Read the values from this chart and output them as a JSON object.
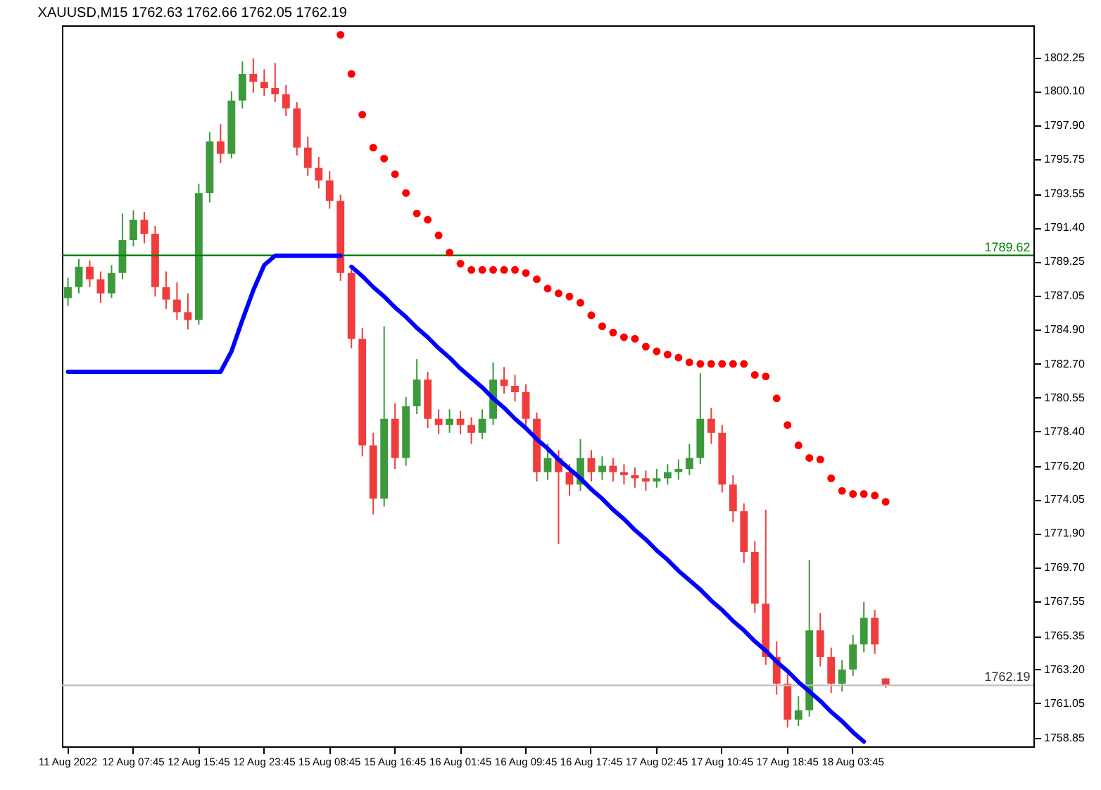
{
  "chart_data": {
    "type": "candlestick",
    "title": "XAUUSD,M15 1762.63 1762.66 1762.05 1762.19",
    "categories": [
      "11 Aug 2022",
      null,
      null,
      null,
      null,
      null,
      "12 Aug 07:45",
      null,
      null,
      null,
      null,
      null,
      "12 Aug 15:45",
      null,
      null,
      null,
      null,
      null,
      "12 Aug 23:45",
      null,
      null,
      null,
      null,
      null,
      "15 Aug 08:45",
      null,
      null,
      null,
      null,
      null,
      "15 Aug 16:45",
      null,
      null,
      null,
      null,
      null,
      "16 Aug 01:45",
      null,
      null,
      null,
      null,
      null,
      "16 Aug 09:45",
      null,
      null,
      null,
      null,
      null,
      "16 Aug 17:45",
      null,
      null,
      null,
      null,
      null,
      "17 Aug 02:45",
      null,
      null,
      null,
      null,
      null,
      "17 Aug 10:45",
      null,
      null,
      null,
      null,
      null,
      "17 Aug 18:45",
      null,
      null,
      null,
      null,
      null,
      "18 Aug 03:45",
      null,
      null,
      null,
      null,
      null,
      null,
      null,
      null,
      null,
      null,
      null,
      null,
      null,
      null,
      null,
      null
    ],
    "ohlc": [
      [
        1786.9,
        1788.2,
        1786.4,
        1787.6
      ],
      [
        1787.6,
        1789.4,
        1787.2,
        1788.9
      ],
      [
        1788.9,
        1789.3,
        1787.6,
        1788.1
      ],
      [
        1788.1,
        1788.6,
        1786.6,
        1787.2
      ],
      [
        1787.2,
        1789.0,
        1786.9,
        1788.5
      ],
      [
        1788.5,
        1792.3,
        1788.1,
        1790.6
      ],
      [
        1790.6,
        1792.5,
        1790.2,
        1791.9
      ],
      [
        1791.9,
        1792.4,
        1790.4,
        1791.0
      ],
      [
        1791.0,
        1791.5,
        1787.0,
        1787.6
      ],
      [
        1787.6,
        1788.6,
        1786.2,
        1786.8
      ],
      [
        1786.8,
        1787.9,
        1785.5,
        1786.0
      ],
      [
        1786.0,
        1787.2,
        1784.9,
        1785.5
      ],
      [
        1785.5,
        1794.2,
        1785.2,
        1793.6
      ],
      [
        1793.6,
        1797.5,
        1793.0,
        1796.9
      ],
      [
        1796.9,
        1798.0,
        1795.5,
        1796.1
      ],
      [
        1796.1,
        1800.1,
        1795.8,
        1799.5
      ],
      [
        1799.5,
        1802.0,
        1799.0,
        1801.2
      ],
      [
        1801.2,
        1802.2,
        1800.0,
        1800.7
      ],
      [
        1800.7,
        1801.5,
        1799.8,
        1800.3
      ],
      [
        1800.3,
        1801.9,
        1799.4,
        1799.9
      ],
      [
        1799.9,
        1800.5,
        1798.5,
        1799.0
      ],
      [
        1799.0,
        1799.4,
        1796.0,
        1796.5
      ],
      [
        1796.5,
        1797.2,
        1794.7,
        1795.2
      ],
      [
        1795.2,
        1795.9,
        1793.9,
        1794.4
      ],
      [
        1794.4,
        1795.0,
        1792.6,
        1793.1
      ],
      [
        1793.1,
        1793.5,
        1788.0,
        1788.5
      ],
      [
        1788.5,
        1789.0,
        1783.7,
        1784.3
      ],
      [
        1784.3,
        1785.0,
        1776.8,
        1777.5
      ],
      [
        1777.5,
        1778.3,
        1773.1,
        1774.1
      ],
      [
        1774.1,
        1785.1,
        1773.6,
        1779.2
      ],
      [
        1779.2,
        1780.2,
        1776.0,
        1776.7
      ],
      [
        1776.7,
        1780.6,
        1776.2,
        1780.0
      ],
      [
        1780.0,
        1783.0,
        1779.5,
        1781.7
      ],
      [
        1781.7,
        1782.2,
        1778.6,
        1779.2
      ],
      [
        1779.2,
        1779.8,
        1778.2,
        1778.8
      ],
      [
        1778.8,
        1779.8,
        1778.3,
        1779.2
      ],
      [
        1779.2,
        1779.7,
        1778.2,
        1778.8
      ],
      [
        1778.8,
        1779.3,
        1777.6,
        1778.3
      ],
      [
        1778.3,
        1779.8,
        1777.9,
        1779.2
      ],
      [
        1779.2,
        1782.8,
        1778.8,
        1781.7
      ],
      [
        1781.7,
        1782.5,
        1780.8,
        1781.3
      ],
      [
        1781.3,
        1782.0,
        1780.3,
        1780.9
      ],
      [
        1780.9,
        1781.4,
        1778.7,
        1779.2
      ],
      [
        1779.2,
        1779.6,
        1775.2,
        1775.8
      ],
      [
        1775.8,
        1777.6,
        1775.3,
        1776.7
      ],
      [
        1776.7,
        1777.2,
        1771.2,
        1775.8
      ],
      [
        1775.8,
        1776.3,
        1774.3,
        1775.0
      ],
      [
        1775.0,
        1777.9,
        1774.6,
        1776.7
      ],
      [
        1776.7,
        1777.2,
        1775.2,
        1775.8
      ],
      [
        1775.8,
        1776.8,
        1775.3,
        1776.2
      ],
      [
        1776.2,
        1776.7,
        1775.2,
        1775.8
      ],
      [
        1775.8,
        1776.3,
        1775.0,
        1775.6
      ],
      [
        1775.6,
        1776.1,
        1774.8,
        1775.4
      ],
      [
        1775.4,
        1775.9,
        1774.6,
        1775.2
      ],
      [
        1775.2,
        1776.0,
        1774.8,
        1775.4
      ],
      [
        1775.4,
        1776.3,
        1775.0,
        1775.8
      ],
      [
        1775.8,
        1776.6,
        1775.3,
        1776.0
      ],
      [
        1776.0,
        1777.6,
        1775.6,
        1776.7
      ],
      [
        1776.7,
        1782.1,
        1776.3,
        1779.2
      ],
      [
        1779.2,
        1779.9,
        1777.6,
        1778.3
      ],
      [
        1778.3,
        1778.8,
        1774.5,
        1775.0
      ],
      [
        1775.0,
        1775.6,
        1772.6,
        1773.3
      ],
      [
        1773.3,
        1773.8,
        1770.0,
        1770.7
      ],
      [
        1770.7,
        1771.4,
        1766.8,
        1767.4
      ],
      [
        1767.4,
        1773.4,
        1763.5,
        1764.0
      ],
      [
        1764.0,
        1765.0,
        1761.6,
        1762.3
      ],
      [
        1762.3,
        1762.9,
        1759.5,
        1760.0
      ],
      [
        1760.0,
        1761.5,
        1759.6,
        1760.6
      ],
      [
        1760.6,
        1770.2,
        1760.2,
        1765.7
      ],
      [
        1765.7,
        1766.8,
        1763.4,
        1764.0
      ],
      [
        1764.0,
        1764.6,
        1761.7,
        1762.3
      ],
      [
        1762.3,
        1763.8,
        1761.8,
        1763.2
      ],
      [
        1763.2,
        1765.4,
        1762.8,
        1764.8
      ],
      [
        1764.8,
        1767.5,
        1764.3,
        1766.5
      ],
      [
        1766.5,
        1767.0,
        1764.2,
        1764.8
      ],
      [
        1762.63,
        1762.66,
        1762.05,
        1762.19
      ],
      null,
      null,
      null,
      null,
      null,
      null,
      null,
      null,
      null,
      null,
      null,
      null,
      null
    ],
    "series": [
      {
        "type": "scatter",
        "color": "#ff0000",
        "values": [
          null,
          null,
          null,
          null,
          null,
          null,
          null,
          null,
          null,
          null,
          null,
          null,
          null,
          null,
          null,
          null,
          null,
          null,
          null,
          null,
          null,
          null,
          null,
          null,
          null,
          1803.7,
          1801.2,
          1798.6,
          1796.5,
          1795.8,
          1794.8,
          1793.6,
          1792.3,
          1791.9,
          1790.9,
          1789.8,
          1789.1,
          1788.7,
          1788.7,
          1788.7,
          1788.7,
          1788.7,
          1788.5,
          1788.1,
          1787.5,
          1787.2,
          1787.0,
          1786.6,
          1785.8,
          1785.1,
          1784.7,
          1784.4,
          1784.3,
          1783.8,
          1783.5,
          1783.3,
          1783.1,
          1782.8,
          1782.7,
          1782.7,
          1782.7,
          1782.7,
          1782.7,
          1782.0,
          1781.9,
          1780.5,
          1778.8,
          1777.5,
          1776.7,
          1776.6,
          1775.4,
          1774.6,
          1774.4,
          1774.4,
          1774.3,
          1773.9,
          null,
          null,
          null,
          null,
          null,
          null,
          null,
          null,
          null,
          null,
          null,
          null,
          null
        ]
      },
      {
        "type": "line",
        "color": "#0000ff",
        "values": [
          1782.2,
          1782.2,
          1782.2,
          1782.2,
          1782.2,
          1782.2,
          1782.2,
          1782.2,
          1782.2,
          1782.2,
          1782.2,
          1782.2,
          1782.2,
          1782.2,
          1782.2,
          1783.5,
          1785.5,
          1787.4,
          1789.0,
          1789.6,
          1789.6,
          1789.6,
          1789.6,
          1789.6,
          1789.6,
          1789.6,
          null,
          null,
          null,
          null,
          null,
          null,
          null,
          null,
          null,
          null,
          null,
          null,
          null,
          null,
          null,
          null,
          null,
          null,
          null,
          null,
          null,
          null,
          null,
          null,
          null,
          null,
          null,
          null,
          null,
          null,
          null,
          null,
          null,
          null,
          null,
          null,
          null,
          null,
          null,
          null,
          null,
          null,
          null,
          null,
          null,
          null,
          null,
          null,
          null,
          null,
          null,
          null,
          null,
          null,
          null,
          null,
          null,
          null,
          null,
          null,
          null,
          null,
          null
        ]
      },
      {
        "type": "line",
        "color": "#0000ff",
        "values": [
          null,
          null,
          null,
          null,
          null,
          null,
          null,
          null,
          null,
          null,
          null,
          null,
          null,
          null,
          null,
          null,
          null,
          null,
          null,
          null,
          null,
          null,
          null,
          null,
          null,
          null,
          1788.9,
          1788.3,
          1787.6,
          1787.0,
          1786.3,
          1785.7,
          1785.0,
          1784.4,
          1783.7,
          1783.1,
          1782.4,
          1781.8,
          1781.2,
          1780.5,
          1779.9,
          1779.2,
          1778.6,
          1777.9,
          1777.3,
          1776.6,
          1776.0,
          1775.4,
          1774.7,
          1774.1,
          1773.4,
          1772.8,
          1772.1,
          1771.5,
          1770.8,
          1770.2,
          1769.5,
          1768.9,
          1768.3,
          1767.6,
          1767.0,
          1766.3,
          1765.7,
          1765.0,
          1764.4,
          1763.7,
          1763.1,
          1762.4,
          1761.8,
          1761.2,
          1760.5,
          1759.9,
          1759.2,
          1758.6,
          null,
          null,
          null,
          null,
          null,
          null,
          null,
          null,
          null,
          null,
          null,
          null,
          null,
          null,
          null
        ]
      }
    ],
    "ylim": [
      1758.3,
      1804.3
    ],
    "yticks": [
      1758.85,
      1761.05,
      {
        "value": 1763.2,
        "label": "1763.20"
      },
      1765.35,
      1767.55,
      {
        "value": 1769.7,
        "label": "1769.70"
      },
      {
        "value": 1771.9,
        "label": "1771.90"
      },
      1774.05,
      {
        "value": 1776.2,
        "label": "1776.20"
      },
      {
        "value": 1778.4,
        "label": "1778.40"
      },
      1780.55,
      {
        "value": 1782.7,
        "label": "1782.70"
      },
      {
        "value": 1784.9,
        "label": "1784.90"
      },
      1787.05,
      1789.25,
      {
        "value": 1791.4,
        "label": "1791.40"
      },
      1793.55,
      1795.75,
      {
        "value": 1797.9,
        "label": "1797.90"
      },
      {
        "value": 1800.1,
        "label": "1800.10"
      },
      1802.25
    ],
    "ref_lines": [
      {
        "axis": "y",
        "value": 1789.62,
        "label": "1789.62",
        "color": "#008000"
      },
      {
        "axis": "y",
        "value": 1762.19,
        "label": "1762.19",
        "color": "#c0c0c0"
      }
    ]
  }
}
